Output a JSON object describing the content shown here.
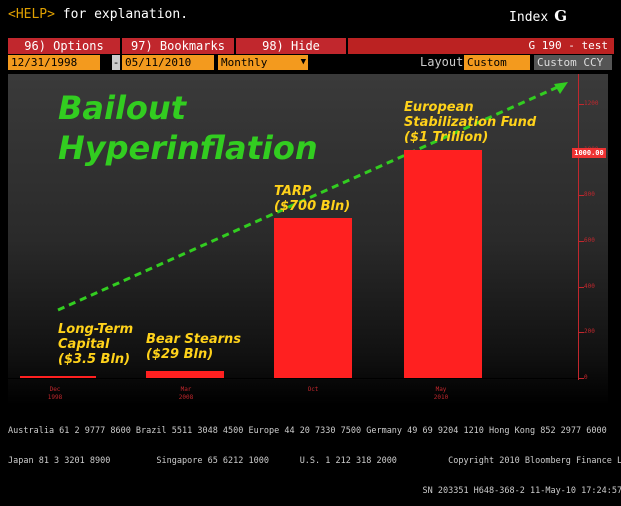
{
  "header": {
    "help_key": "<HELP>",
    "help_text": " for explanation.",
    "index_label": "Index",
    "index_letter": "G"
  },
  "menu": {
    "items": [
      "96) Options",
      "97) Bookmarks",
      "98) Hide"
    ],
    "title": "G 190 - test"
  },
  "fields": {
    "start_date": "12/31/1998",
    "dash": "-",
    "end_date": "05/11/2010",
    "frequency": "Monthly",
    "layout_label": "Layout",
    "layout_value": "Custom",
    "currency": "Custom CCY"
  },
  "chart": {
    "headline_1": "Bailout",
    "headline_2": "Hyperinflation",
    "highlight_value": "1000.00",
    "yticks": [
      "1200",
      "1000",
      "800",
      "600",
      "400",
      "200",
      "0"
    ],
    "xticks": [
      {
        "month": "Dec",
        "year": "1998"
      },
      {
        "month": "Mar",
        "year": "2008"
      },
      {
        "month": "Oct",
        "year": ""
      },
      {
        "month": "May",
        "year": "2010"
      }
    ],
    "labels": [
      {
        "line1": "Long-Term",
        "line2": "Capital",
        "line3": "($3.5 Bln)"
      },
      {
        "line1": "Bear Stearns",
        "line2": "($29 Bln)"
      },
      {
        "line1": "TARP",
        "line2": "($700 Bln)"
      },
      {
        "line1": "European",
        "line2": "Stabilization Fund",
        "line3": "($1 Trillion)"
      }
    ],
    "colors": {
      "bar": "#ff2020",
      "headline": "#32cd20",
      "labels": "#ffd21a",
      "arrow": "#32cd20"
    }
  },
  "chart_data": {
    "type": "bar",
    "categories": [
      "Long-Term Capital",
      "Bear Stearns",
      "TARP",
      "European Stabilization Fund"
    ],
    "values": [
      3.5,
      29,
      700,
      1000
    ],
    "ylim": [
      0,
      1200
    ]
  },
  "footer": {
    "line1": "Australia 61 2 9777 8600 Brazil 5511 3048 4500 Europe 44 20 7330 7500 Germany 49 69 9204 1210 Hong Kong 852 2977 6000",
    "line2": "Japan 81 3 3201 8900         Singapore 65 6212 1000      U.S. 1 212 318 2000          Copyright 2010 Bloomberg Finance L.P.",
    "line3": "                                                                                 SN 203351 H648-368-2 11-May-10 17:24:57"
  }
}
